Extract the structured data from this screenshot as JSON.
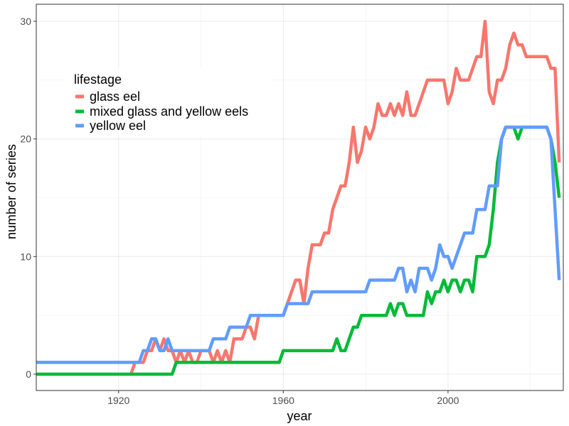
{
  "chart_data": {
    "type": "line",
    "xlabel": "year",
    "ylabel": "number of series",
    "xlim": [
      1900,
      2028
    ],
    "ylim": [
      0,
      30
    ],
    "x_ticks": [
      1920,
      1960,
      2000
    ],
    "y_ticks": [
      0,
      10,
      20,
      30
    ],
    "grid": true,
    "legend": {
      "title": "lifestage",
      "position": "top-left inside"
    },
    "series": [
      {
        "name": "glass eel",
        "color": "#F8766D",
        "x": [
          1923,
          1924,
          1925,
          1926,
          1927,
          1928,
          1929,
          1930,
          1931,
          1932,
          1933,
          1934,
          1935,
          1936,
          1937,
          1938,
          1939,
          1940,
          1941,
          1942,
          1943,
          1944,
          1945,
          1946,
          1947,
          1948,
          1949,
          1950,
          1951,
          1952,
          1953,
          1954,
          1955,
          1956,
          1957,
          1958,
          1959,
          1960,
          1961,
          1962,
          1963,
          1964,
          1965,
          1966,
          1967,
          1968,
          1969,
          1970,
          1971,
          1972,
          1973,
          1974,
          1975,
          1976,
          1977,
          1978,
          1979,
          1980,
          1981,
          1982,
          1983,
          1984,
          1985,
          1986,
          1987,
          1988,
          1989,
          1990,
          1991,
          1992,
          1993,
          1994,
          1995,
          1996,
          1997,
          1998,
          1999,
          2000,
          2001,
          2002,
          2003,
          2004,
          2005,
          2006,
          2007,
          2008,
          2009,
          2010,
          2011,
          2012,
          2013,
          2014,
          2015,
          2016,
          2017,
          2018,
          2019,
          2020,
          2021,
          2022,
          2023,
          2024,
          2025,
          2026,
          2027
        ],
        "y": [
          0,
          1,
          1,
          1,
          2,
          2,
          3,
          2,
          3,
          2,
          2,
          1,
          2,
          1,
          2,
          1,
          1,
          2,
          2,
          2,
          1,
          2,
          1,
          2,
          1,
          3,
          3,
          3,
          4,
          4,
          3,
          5,
          5,
          5,
          5,
          5,
          5,
          5,
          6,
          7,
          8,
          8,
          6,
          9,
          11,
          11,
          11,
          12,
          12,
          14,
          15,
          16,
          16,
          18,
          21,
          18,
          19,
          21,
          20,
          21,
          23,
          22,
          22,
          23,
          22,
          23,
          22,
          24,
          22,
          22,
          23,
          24,
          25,
          25,
          25,
          25,
          25,
          23,
          24,
          26,
          25,
          25,
          25,
          26,
          27,
          27,
          30,
          24,
          23,
          25,
          25,
          26,
          28,
          29,
          28,
          28,
          27,
          27,
          27,
          27,
          27,
          27,
          26,
          26,
          18
        ]
      },
      {
        "name": "mixed glass and yellow eels",
        "color": "#00BA38",
        "x": [
          1900,
          1932,
          1933,
          1934,
          1935,
          1958,
          1959,
          1960,
          1961,
          1962,
          1972,
          1973,
          1974,
          1975,
          1976,
          1977,
          1978,
          1979,
          1985,
          1986,
          1987,
          1988,
          1989,
          1990,
          1991,
          1992,
          1993,
          1994,
          1995,
          1996,
          1997,
          1998,
          1999,
          2000,
          2001,
          2002,
          2003,
          2004,
          2005,
          2006,
          2007,
          2008,
          2009,
          2010,
          2011,
          2012,
          2013,
          2014,
          2015,
          2016,
          2017,
          2018,
          2019,
          2020,
          2021,
          2022,
          2023,
          2024,
          2025,
          2026,
          2027
        ],
        "y": [
          0,
          0,
          0,
          1,
          1,
          1,
          1,
          2,
          2,
          2,
          2,
          3,
          2,
          2,
          3,
          4,
          4,
          5,
          5,
          6,
          5,
          6,
          6,
          5,
          5,
          5,
          5,
          5,
          7,
          6,
          7,
          7,
          8,
          7,
          8,
          8,
          7,
          8,
          8,
          7,
          10,
          10,
          10,
          11,
          14,
          18,
          20,
          21,
          21,
          21,
          20,
          21,
          21,
          21,
          21,
          21,
          21,
          21,
          20,
          18,
          15
        ]
      },
      {
        "name": "yellow eel",
        "color": "#619CFF",
        "x": [
          1900,
          1925,
          1926,
          1927,
          1928,
          1929,
          1930,
          1931,
          1932,
          1933,
          1934,
          1942,
          1943,
          1944,
          1945,
          1946,
          1947,
          1948,
          1949,
          1950,
          1951,
          1952,
          1953,
          1960,
          1961,
          1962,
          1963,
          1964,
          1965,
          1966,
          1967,
          1968,
          1979,
          1980,
          1981,
          1985,
          1986,
          1987,
          1988,
          1989,
          1990,
          1991,
          1992,
          1993,
          1994,
          1995,
          1996,
          1997,
          1998,
          1999,
          2000,
          2001,
          2002,
          2003,
          2004,
          2005,
          2006,
          2007,
          2008,
          2009,
          2010,
          2011,
          2012,
          2013,
          2014,
          2015,
          2016,
          2017,
          2018,
          2019,
          2020,
          2021,
          2022,
          2023,
          2024,
          2025,
          2026,
          2027
        ],
        "y": [
          1,
          1,
          2,
          2,
          3,
          3,
          2,
          2,
          3,
          2,
          2,
          2,
          3,
          3,
          3,
          3,
          4,
          4,
          4,
          4,
          4,
          5,
          5,
          5,
          6,
          6,
          6,
          6,
          6,
          6,
          7,
          7,
          7,
          7,
          8,
          8,
          8,
          8,
          9,
          9,
          7,
          8,
          7,
          9,
          9,
          9,
          8,
          9,
          11,
          10,
          10,
          9,
          10,
          11,
          12,
          12,
          12,
          14,
          14,
          14,
          16,
          16,
          16,
          20,
          21,
          21,
          21,
          21,
          21,
          21,
          21,
          21,
          21,
          21,
          21,
          20,
          14,
          8
        ]
      }
    ]
  }
}
